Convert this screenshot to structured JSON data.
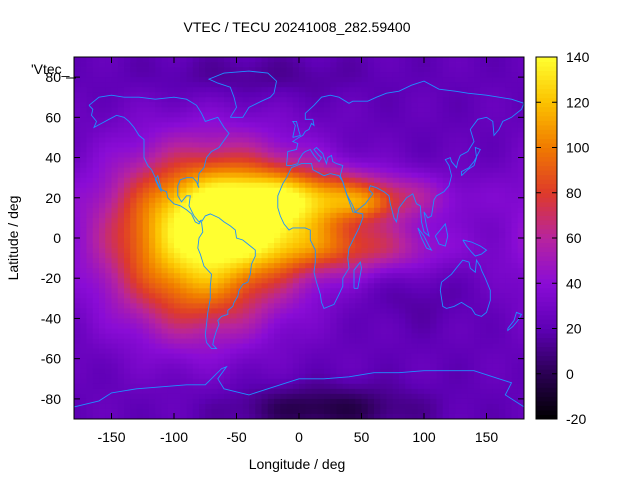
{
  "chart_data": {
    "type": "heatmap",
    "title": "VTEC / TECU 20241008_282.59400",
    "xlabel": "Longitude / deg",
    "ylabel": "Latitude / deg",
    "xlim": [
      -180,
      180
    ],
    "ylim": [
      -90,
      90
    ],
    "x_ticks": [
      -150,
      -100,
      -50,
      0,
      50,
      100,
      150
    ],
    "y_ticks": [
      -80,
      -60,
      -40,
      -20,
      0,
      20,
      40,
      60,
      80
    ],
    "colorbar": {
      "label": "",
      "range": [
        -20,
        140
      ],
      "ticks": [
        -20,
        0,
        20,
        40,
        60,
        80,
        100,
        120,
        140
      ],
      "palette": [
        "#000000",
        "#2a0052",
        "#5e00b5",
        "#8a0cd6",
        "#b7249e",
        "#de3a2a",
        "#f07a00",
        "#fcc200",
        "#ffff30"
      ]
    },
    "legend_entry": "'Vtec_",
    "legend_position": "top-left",
    "overlay": "coastlines",
    "coastline_color": "#1e90ff",
    "features": {
      "background_level": 22,
      "crests": [
        {
          "center": [
            -65,
            5
          ],
          "spread": [
            55,
            28
          ],
          "value": 95
        },
        {
          "center": [
            -30,
            15
          ],
          "spread": [
            45,
            14
          ],
          "value": 45
        },
        {
          "center": [
            40,
            20
          ],
          "spread": [
            55,
            9
          ],
          "value": 55
        },
        {
          "center": [
            40,
            -5
          ],
          "spread": [
            55,
            9
          ],
          "value": 45
        },
        {
          "center": [
            55,
            17
          ],
          "spread": [
            15,
            5
          ],
          "value": 18
        },
        {
          "center": [
            -110,
            -5
          ],
          "spread": [
            45,
            30
          ],
          "value": 25
        },
        {
          "center": [
            -80,
            -30
          ],
          "spread": [
            35,
            20
          ],
          "value": 20
        }
      ],
      "depletions": [
        {
          "center": [
            20,
            -85
          ],
          "spread": [
            50,
            8
          ],
          "value": -25
        },
        {
          "center": [
            -40,
            80
          ],
          "spread": [
            60,
            8
          ],
          "value": -10
        },
        {
          "center": [
            90,
            -30
          ],
          "spread": [
            30,
            10
          ],
          "value": -6
        }
      ]
    }
  }
}
